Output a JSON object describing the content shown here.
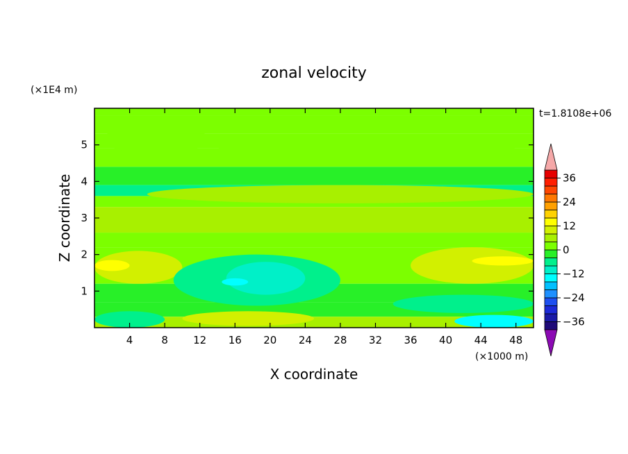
{
  "chart_data": {
    "type": "heatmap",
    "title": "zonal velocity",
    "xlabel": "X coordinate",
    "ylabel": "Z coordinate",
    "x_unit": "(×1000 m)",
    "y_unit": "(×1E4 m)",
    "time_label": "t=1.8108e+06",
    "xlim": [
      0,
      50
    ],
    "ylim": [
      0,
      6
    ],
    "x_ticks": [
      "4",
      "8",
      "12",
      "16",
      "20",
      "24",
      "28",
      "32",
      "36",
      "40",
      "44",
      "48"
    ],
    "y_ticks": [
      "1",
      "2",
      "3",
      "4",
      "5"
    ],
    "colorbar": {
      "labels": [
        "36",
        "24",
        "12",
        "0",
        "−12",
        "−24",
        "−36"
      ],
      "levels": [
        -40,
        -36,
        -32,
        -28,
        -24,
        -20,
        -16,
        -12,
        -8,
        -4,
        0,
        4,
        8,
        12,
        16,
        20,
        24,
        28,
        32,
        36,
        40
      ],
      "colors": [
        "#1e0a78",
        "#1a1aa8",
        "#1c2ad8",
        "#1e50f0",
        "#1e90ff",
        "#00c0ff",
        "#00ffff",
        "#00f0c8",
        "#00f08c",
        "#28f028",
        "#7cff00",
        "#a8f000",
        "#d2f000",
        "#ffff00",
        "#ffd200",
        "#ffa000",
        "#ff7800",
        "#ff4600",
        "#ff1e00",
        "#e60000"
      ],
      "over_color": "#f5a8a8",
      "under_color": "#8c0ab4"
    },
    "bands": [
      {
        "z_range": [
          5.8,
          6.0
        ],
        "value": 3
      },
      {
        "z_range": [
          5.3,
          5.8
        ],
        "value": 1
      },
      {
        "z_range": [
          4.9,
          5.3
        ],
        "value": 2
      },
      {
        "z_range": [
          4.4,
          4.9
        ],
        "value": 1
      },
      {
        "z_range": [
          3.9,
          4.4
        ],
        "value": -2
      },
      {
        "z_range": [
          3.6,
          3.9
        ],
        "value": -6
      },
      {
        "z_range": [
          3.3,
          3.6
        ],
        "value": 3
      },
      {
        "z_range": [
          2.6,
          3.3
        ],
        "value": 6
      },
      {
        "z_range": [
          2.2,
          2.6
        ],
        "value": 2
      },
      {
        "z_range": [
          1.2,
          2.2
        ],
        "value": 1
      },
      {
        "z_range": [
          0.7,
          1.2
        ],
        "value": -2
      },
      {
        "z_range": [
          0.3,
          0.7
        ],
        "value": -3
      },
      {
        "z_range": [
          0.0,
          0.3
        ],
        "value": 5
      }
    ],
    "features": [
      {
        "x_range": [
          1,
          13
        ],
        "z_range": [
          4.75,
          5.55
        ],
        "value": 3
      },
      {
        "x_range": [
          14,
          48
        ],
        "z_range": [
          4.45,
          5.25
        ],
        "value": 3
      },
      {
        "x_range": [
          6,
          50
        ],
        "z_range": [
          3.4,
          3.9
        ],
        "value": 4
      },
      {
        "x_range": [
          0,
          10
        ],
        "z_range": [
          1.2,
          2.1
        ],
        "value": 9
      },
      {
        "x_range": [
          0,
          4
        ],
        "z_range": [
          1.55,
          1.85
        ],
        "value": 12
      },
      {
        "x_range": [
          36,
          50
        ],
        "z_range": [
          1.2,
          2.2
        ],
        "value": 9
      },
      {
        "x_range": [
          43,
          50
        ],
        "z_range": [
          1.7,
          1.95
        ],
        "value": 12
      },
      {
        "x_range": [
          9,
          28
        ],
        "z_range": [
          0.6,
          2.0
        ],
        "value": -6
      },
      {
        "x_range": [
          15,
          24
        ],
        "z_range": [
          0.9,
          1.8
        ],
        "value": -10
      },
      {
        "x_range": [
          14.5,
          17.5
        ],
        "z_range": [
          1.15,
          1.35
        ],
        "value": -14
      },
      {
        "x_range": [
          10,
          25
        ],
        "z_range": [
          0.05,
          0.45
        ],
        "value": 9
      },
      {
        "x_range": [
          0,
          8
        ],
        "z_range": [
          0.0,
          0.45
        ],
        "value": -6
      },
      {
        "x_range": [
          34,
          50
        ],
        "z_range": [
          0.4,
          0.9
        ],
        "value": -5
      },
      {
        "x_range": [
          41,
          50
        ],
        "z_range": [
          0.0,
          0.35
        ],
        "value": -13
      }
    ]
  }
}
